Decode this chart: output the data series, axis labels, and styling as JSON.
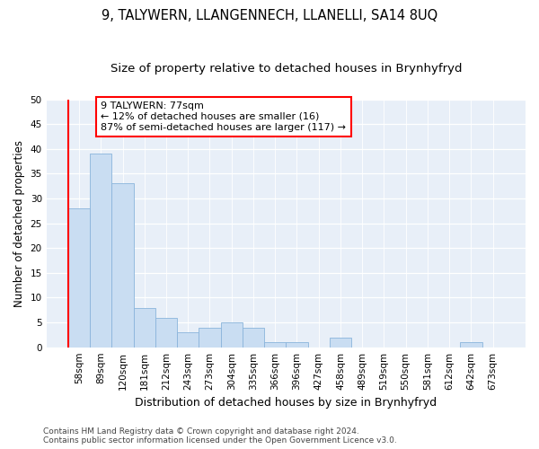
{
  "title": "9, TALYWERN, LLANGENNECH, LLANELLI, SA14 8UQ",
  "subtitle": "Size of property relative to detached houses in Brynhyfryd",
  "xlabel": "Distribution of detached houses by size in Brynhyfryd",
  "ylabel": "Number of detached properties",
  "categories": [
    "58sqm",
    "89sqm",
    "120sqm",
    "181sqm",
    "212sqm",
    "243sqm",
    "273sqm",
    "304sqm",
    "335sqm",
    "366sqm",
    "396sqm",
    "427sqm",
    "458sqm",
    "489sqm",
    "519sqm",
    "550sqm",
    "581sqm",
    "612sqm",
    "642sqm",
    "673sqm"
  ],
  "values": [
    28,
    39,
    33,
    8,
    6,
    3,
    4,
    5,
    4,
    1,
    1,
    0,
    2,
    0,
    0,
    0,
    0,
    0,
    1,
    0
  ],
  "bar_color": "#c9ddf2",
  "bar_edge_color": "#8ab4db",
  "annotation_text": "9 TALYWERN: 77sqm\n← 12% of detached houses are smaller (16)\n87% of semi-detached houses are larger (117) →",
  "annotation_box_color": "white",
  "annotation_box_edge_color": "red",
  "vline_color": "red",
  "vline_x": -0.5,
  "ylim": [
    0,
    50
  ],
  "yticks": [
    0,
    5,
    10,
    15,
    20,
    25,
    30,
    35,
    40,
    45,
    50
  ],
  "bg_color": "#e8eff8",
  "footer": "Contains HM Land Registry data © Crown copyright and database right 2024.\nContains public sector information licensed under the Open Government Licence v3.0.",
  "title_fontsize": 10.5,
  "subtitle_fontsize": 9.5,
  "xlabel_fontsize": 9,
  "ylabel_fontsize": 8.5,
  "tick_fontsize": 7.5,
  "footer_fontsize": 6.5,
  "annot_fontsize": 8
}
